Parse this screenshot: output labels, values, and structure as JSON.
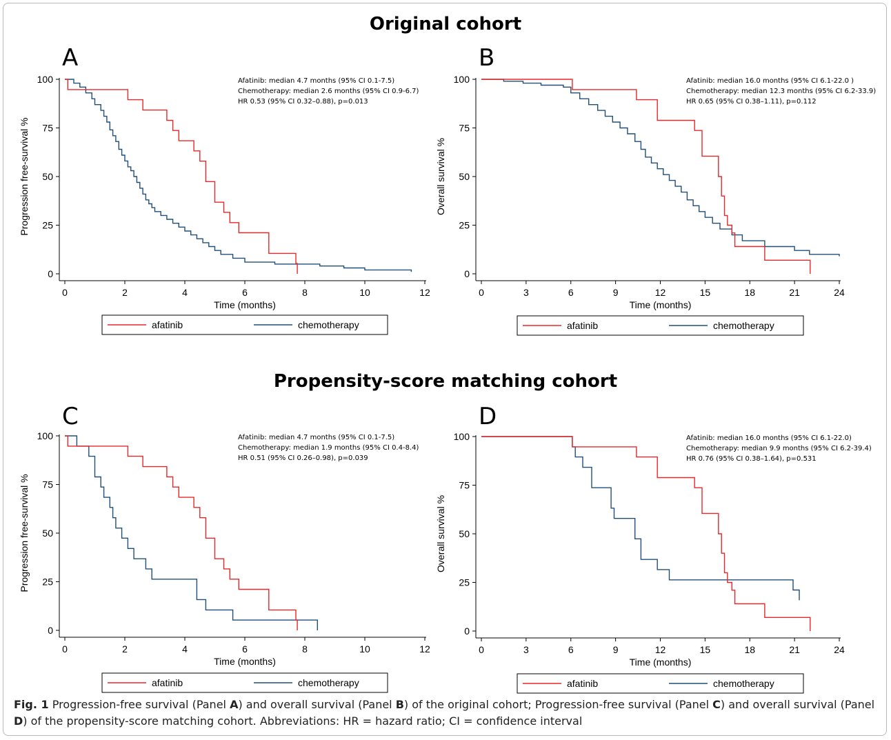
{
  "titles": {
    "original": "Original cohort",
    "psm": "Propensity-score matching cohort"
  },
  "caption": {
    "fig_label": "Fig. 1",
    "t1": " Progression-free survival (Panel ",
    "a": "A",
    "t2": ") and overall survival (Panel ",
    "b": "B",
    "t3": ") of the original cohort; Progression-free survival (Panel ",
    "c": "C",
    "t4": ") and overall survival (Panel ",
    "d": "D",
    "t5": ") of the propensity-score matching cohort. Abbreviations: HR = hazard ratio; CI = confidence interval"
  },
  "colors": {
    "afatinib": "#e8272a",
    "chemotherapy": "#1f4e79"
  },
  "chart_data": [
    {
      "type": "line",
      "panel": "A",
      "xlabel": "Time (months)",
      "ylabel": "Progression free-survival %",
      "xlim": [
        0,
        12
      ],
      "ylim": [
        0,
        100
      ],
      "xticks": [
        "0",
        "2",
        "4",
        "6",
        "8",
        "10",
        "12"
      ],
      "yticks": [
        "0",
        "25",
        "50",
        "75",
        "100"
      ],
      "annotations": [
        "Afatinib: median 4.7 months (95% CI 0.1-7.5)",
        "Chemotherapy: median 2.6 months (95% CI  0.9-6.7)",
        "HR 0.53 (95% CI 0.32–0.88), p=0.013"
      ],
      "legend": [
        "afatinib",
        "chemotherapy"
      ],
      "series": [
        {
          "name": "afatinib",
          "x": [
            0,
            0.1,
            2.1,
            2.6,
            3.4,
            3.6,
            3.8,
            4.3,
            4.5,
            4.7,
            5.0,
            5.3,
            5.5,
            5.8,
            6.8,
            7.7,
            7.75
          ],
          "y": [
            100,
            94.7,
            89.5,
            84.2,
            78.9,
            73.7,
            68.4,
            63.2,
            57.9,
            47.4,
            36.8,
            31.6,
            26.3,
            21.1,
            10.5,
            5.3,
            0
          ]
        },
        {
          "name": "chemotherapy",
          "x": [
            0,
            0.3,
            0.5,
            0.7,
            0.9,
            1.0,
            1.2,
            1.3,
            1.4,
            1.5,
            1.6,
            1.7,
            1.8,
            1.9,
            2.0,
            2.1,
            2.2,
            2.3,
            2.4,
            2.5,
            2.6,
            2.7,
            2.8,
            2.9,
            3.0,
            3.2,
            3.4,
            3.6,
            3.8,
            4.0,
            4.2,
            4.4,
            4.6,
            4.8,
            5.0,
            5.2,
            5.6,
            6.0,
            7.0,
            8.5,
            9.3,
            10.0,
            11.55
          ],
          "y": [
            100,
            98,
            96,
            93,
            90,
            87,
            84,
            81,
            78,
            74,
            71,
            68,
            64,
            61,
            58,
            55,
            53,
            50,
            47,
            44,
            41,
            38,
            36,
            34,
            32,
            30,
            28,
            26,
            24,
            22,
            20,
            18,
            16,
            14,
            12,
            10,
            8,
            6,
            5,
            4,
            3,
            2,
            1
          ]
        }
      ]
    },
    {
      "type": "line",
      "panel": "B",
      "xlabel": "Time (months)",
      "ylabel": "Overall survival %",
      "xlim": [
        0,
        24
      ],
      "ylim": [
        0,
        100
      ],
      "xticks": [
        "0",
        "3",
        "6",
        "9",
        "12",
        "15",
        "18",
        "21",
        "24"
      ],
      "yticks": [
        "0",
        "25",
        "50",
        "75",
        "100"
      ],
      "annotations": [
        "Afatinib: median 16.0 months (95% CI 6.1-22.0 )",
        "Chemotherapy: median 12.3 months (95% CI 6.2-33.9)",
        "HR 0.65 (95% CI 0.38–1.11), p=0.112"
      ],
      "legend": [
        "afatinib",
        "chemotherapy"
      ],
      "series": [
        {
          "name": "afatinib",
          "x": [
            0,
            6.1,
            10.4,
            11.8,
            14.3,
            14.8,
            15.9,
            16.1,
            16.3,
            16.5,
            16.8,
            17.0,
            19.0,
            22.0,
            22.05
          ],
          "y": [
            100,
            94.7,
            89.5,
            78.9,
            73.7,
            60.5,
            50,
            40,
            30,
            25,
            21,
            14,
            7,
            7,
            0
          ]
        },
        {
          "name": "chemotherapy",
          "x": [
            0,
            1.5,
            2.8,
            4.0,
            5.5,
            6.0,
            6.6,
            7.2,
            7.8,
            8.3,
            8.8,
            9.3,
            9.8,
            10.3,
            10.7,
            11.0,
            11.4,
            11.8,
            12.2,
            12.6,
            13.0,
            13.4,
            13.8,
            14.2,
            14.6,
            15.0,
            15.5,
            16.0,
            16.8,
            17.5,
            19.0,
            21.0,
            22.0,
            24.0
          ],
          "y": [
            100,
            99,
            98,
            97,
            96,
            93,
            90,
            87,
            84,
            81,
            78,
            75,
            72,
            68,
            64,
            60,
            57,
            54,
            51,
            48,
            45,
            42,
            38,
            35,
            32,
            29,
            26,
            23,
            20,
            17,
            14,
            12,
            10,
            9
          ]
        }
      ]
    },
    {
      "type": "line",
      "panel": "C",
      "xlabel": "Time (months)",
      "ylabel": "Progression free-survival %",
      "xlim": [
        0,
        12
      ],
      "ylim": [
        0,
        100
      ],
      "xticks": [
        "0",
        "2",
        "4",
        "6",
        "8",
        "10",
        "12"
      ],
      "yticks": [
        "0",
        "25",
        "50",
        "75",
        "100"
      ],
      "annotations": [
        "Afatinib: median 4.7 months (95% CI 0.1-7.5)",
        "Chemotherapy: median 1.9 months (95% CI  0.4-8.4)",
        "HR 0.51 (95% CI 0.26–0.98), p=0.039"
      ],
      "legend": [
        "afatinib",
        "chemotherapy"
      ],
      "series": [
        {
          "name": "afatinib",
          "x": [
            0,
            0.1,
            2.1,
            2.6,
            3.4,
            3.6,
            3.8,
            4.3,
            4.5,
            4.7,
            5.0,
            5.3,
            5.5,
            5.8,
            6.8,
            7.7,
            7.75
          ],
          "y": [
            100,
            94.7,
            89.5,
            84.2,
            78.9,
            73.7,
            68.4,
            63.2,
            57.9,
            47.4,
            36.8,
            31.6,
            26.3,
            21.1,
            10.5,
            5.3,
            0
          ]
        },
        {
          "name": "chemotherapy",
          "x": [
            0,
            0.4,
            0.8,
            1.0,
            1.2,
            1.3,
            1.5,
            1.6,
            1.7,
            1.9,
            2.1,
            2.3,
            2.7,
            2.9,
            4.4,
            4.7,
            5.6,
            8.4,
            8.42
          ],
          "y": [
            100,
            94.7,
            89.5,
            78.9,
            73.7,
            68.4,
            63.2,
            57.9,
            52.6,
            47.4,
            42.1,
            36.8,
            31.6,
            26.3,
            15.8,
            10.5,
            5.3,
            5.3,
            0
          ]
        }
      ]
    },
    {
      "type": "line",
      "panel": "D",
      "xlabel": "Time (months)",
      "ylabel": "Overall survival %",
      "xlim": [
        0,
        24
      ],
      "ylim": [
        0,
        100
      ],
      "xticks": [
        "0",
        "3",
        "6",
        "9",
        "12",
        "15",
        "18",
        "21",
        "24"
      ],
      "yticks": [
        "0",
        "25",
        "50",
        "75",
        "100"
      ],
      "annotations": [
        "Afatinib: median 16.0 months (95% CI 6.1-22.0)",
        "Chemotherapy: median 9.9 months (95% CI  6.2-39.4)",
        "HR 0.76 (95% CI 0.38–1.64), p=0.531"
      ],
      "legend": [
        "afatinib",
        "chemotherapy"
      ],
      "series": [
        {
          "name": "afatinib",
          "x": [
            0,
            6.1,
            10.4,
            11.8,
            14.3,
            14.8,
            15.9,
            16.1,
            16.3,
            16.5,
            16.8,
            17.0,
            19.0,
            22.0,
            22.05
          ],
          "y": [
            100,
            94.7,
            89.5,
            78.9,
            73.7,
            60.5,
            50,
            40,
            30,
            25,
            21,
            14,
            7,
            7,
            0
          ]
        },
        {
          "name": "chemotherapy",
          "x": [
            0,
            6.1,
            6.3,
            6.8,
            7.4,
            8.7,
            8.9,
            10.3,
            10.7,
            11.8,
            12.6,
            20.9,
            21.3,
            21.32
          ],
          "y": [
            100,
            94.7,
            89.5,
            84.2,
            73.7,
            63.2,
            57.9,
            47.4,
            36.8,
            31.6,
            26.3,
            21.1,
            21.1,
            15.8
          ]
        }
      ]
    }
  ]
}
